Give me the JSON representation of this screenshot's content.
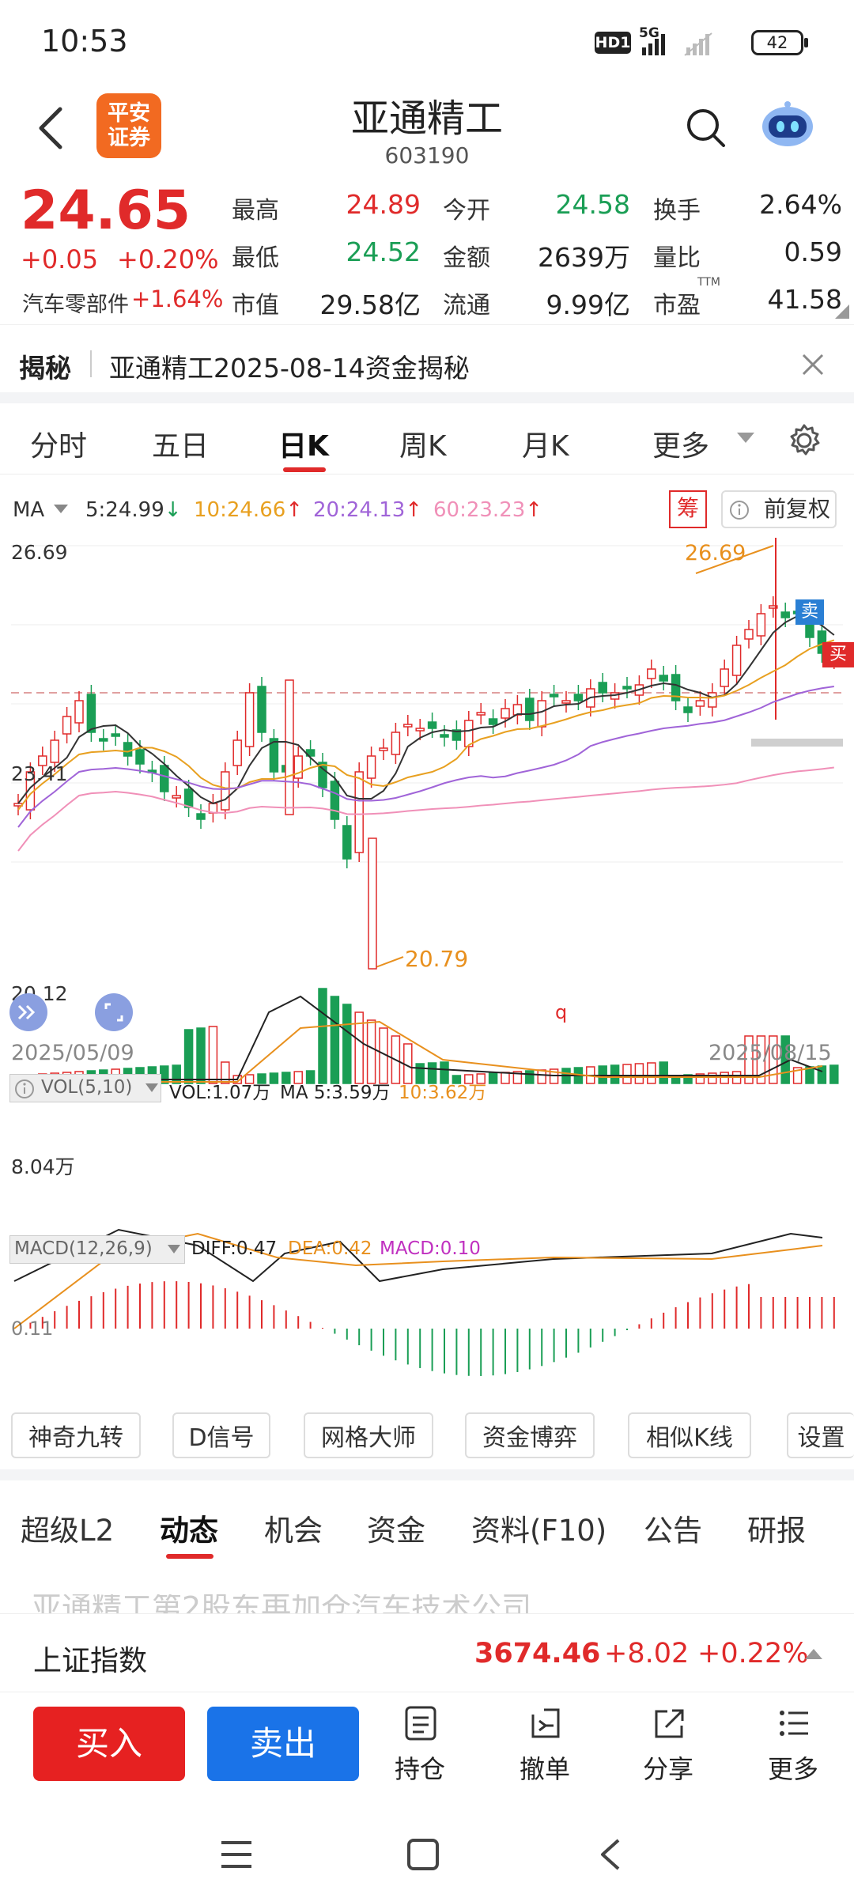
{
  "status": {
    "time": "10:53",
    "network": "5G",
    "hd": "HD1",
    "battery": "42"
  },
  "header": {
    "broker_logo": "平安\n证券",
    "stock_name": "亚通精工",
    "stock_code": "603190"
  },
  "quote": {
    "price": "24.65",
    "change": "+0.05",
    "change_pct": "+0.20%",
    "sector": "汽车零部件",
    "sector_pct": "+1.64%",
    "fields": [
      {
        "label": "最高",
        "value": "24.89",
        "color": "red"
      },
      {
        "label": "今开",
        "value": "24.58",
        "color": "green"
      },
      {
        "label": "换手",
        "value": "2.64%",
        "color": "dark"
      },
      {
        "label": "最低",
        "value": "24.52",
        "color": "green"
      },
      {
        "label": "金额",
        "value": "2639万",
        "color": "dark"
      },
      {
        "label": "量比",
        "value": "0.59",
        "color": "dark"
      },
      {
        "label": "市值",
        "value": "29.58亿",
        "color": "dark"
      },
      {
        "label": "流通",
        "value": "9.99亿",
        "color": "dark"
      },
      {
        "label": "市盈",
        "value": "41.58",
        "color": "dark",
        "sup": "TTM"
      }
    ]
  },
  "notice": {
    "tag": "揭秘",
    "text": "亚通精工2025-08-14资金揭秘"
  },
  "chart_tabs": [
    "分时",
    "五日",
    "日K",
    "周K",
    "月K",
    "更多"
  ],
  "chart_tabs_active": "日K",
  "ma_legend": {
    "label": "MA",
    "ma5": "5:24.99",
    "ma10": "10:24.66",
    "ma20": "20:24.13",
    "ma60": "60:23.23",
    "chip": "筹",
    "adjust": "前复权"
  },
  "ma_colors": {
    "ma5": "#333333",
    "ma10": "#e8a020",
    "ma20": "#a064d8",
    "ma60": "#f090b8"
  },
  "kline": {
    "y_top": "26.69",
    "y_mid": "23.41",
    "y_bottom": "20.12",
    "high_marker": "26.69",
    "low_marker": "20.79",
    "start_date": "2025/05/09",
    "end_date": "2025/08/15",
    "sell_badge": "卖",
    "buy_badge": "买",
    "marker_q": "q"
  },
  "vol_legend": {
    "label": "VOL(5,10)",
    "vol": "VOL:1.07万",
    "ma5": "MA 5:3.59万",
    "ma10": "10:3.62万",
    "y_label": "8.04万"
  },
  "macd_legend": {
    "label": "MACD(12,26,9)",
    "diff": "DIFF:0.47",
    "dea": "DEA:0.42",
    "macd": "MACD:0.10",
    "y_label": "0.11"
  },
  "tools": [
    "神奇九转",
    "D信号",
    "网格大师",
    "资金博弈",
    "相似K线",
    "设置"
  ],
  "sections": [
    "超级L2",
    "动态",
    "机会",
    "资金",
    "资料(F10)",
    "公告",
    "研报"
  ],
  "sections_active": "动态",
  "news_peek": "亚通精工第2股东再加仓汽车技术公司",
  "index_bar": {
    "name": "上证指数",
    "value": "3674.46",
    "change": "+8.02",
    "pct": "+0.22%"
  },
  "bottom": {
    "buy": "买入",
    "sell": "卖出",
    "hold": "持仓",
    "cancel": "撤单",
    "share": "分享",
    "more": "更多"
  }
}
